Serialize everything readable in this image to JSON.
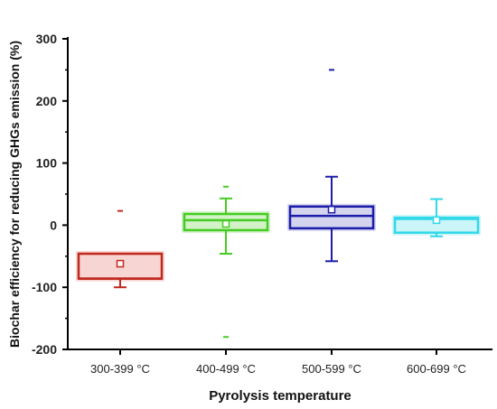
{
  "chart_data": {
    "type": "box",
    "xlabel": "Pyrolysis temperature",
    "ylabel": "Biochar efficiency for reducing GHGs emission (%)",
    "ylim": [
      -200,
      300
    ],
    "yticks": [
      -200,
      -100,
      0,
      100,
      200,
      300
    ],
    "categories": [
      "300-399 °C",
      "400-499 °C",
      "500-599 °C",
      "600-699 °C"
    ],
    "grid": false,
    "legend": "none",
    "boxes": [
      {
        "category": "300-399 °C",
        "color": "#c0281e",
        "shade": "#f6d5d2",
        "whisker_low": -100,
        "q1": -86,
        "median": -86,
        "q3": -46,
        "whisker_high": -46,
        "mean": -62,
        "outliers": [
          23
        ]
      },
      {
        "category": "400-499 °C",
        "color": "#44cc22",
        "shade": "#d3f2c8",
        "whisker_low": -46,
        "q1": -8,
        "median": 8,
        "q3": 18,
        "whisker_high": 43,
        "mean": 2,
        "outliers": [
          62,
          -180
        ]
      },
      {
        "category": "500-599 °C",
        "color": "#1c1caa",
        "shade": "#d4d4ee",
        "whisker_low": -58,
        "q1": -5,
        "median": 15,
        "q3": 30,
        "whisker_high": 78,
        "mean": 25,
        "outliers": [
          250
        ]
      },
      {
        "category": "600-699 °C",
        "color": "#30d8e8",
        "shade": "#ccf5fa",
        "whisker_low": -18,
        "q1": -12,
        "median": 10,
        "q3": 12,
        "whisker_high": 42,
        "mean": 8,
        "outliers": []
      }
    ]
  }
}
